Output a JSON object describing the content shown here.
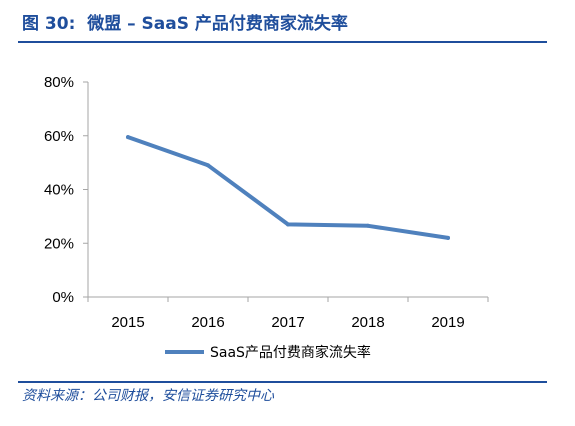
{
  "header": {
    "figure_no": "图 30:",
    "title": "微盟 – SaaS 产品付费商家流失率"
  },
  "footer": {
    "source": "资料来源：公司财报，安信证券研究中心"
  },
  "colors": {
    "accent": "#1f4e9c",
    "series": "#4f81bd",
    "axis": "#a6a6a6"
  },
  "chart_data": {
    "type": "line",
    "x": [
      "2015",
      "2016",
      "2017",
      "2018",
      "2019"
    ],
    "ylim": [
      0,
      80
    ],
    "yticks": [
      0,
      20,
      40,
      60,
      80
    ],
    "ytick_labels": [
      "0%",
      "20%",
      "40%",
      "60%",
      "80%"
    ],
    "series": [
      {
        "name": "SaaS产品付费商家流失率",
        "values": [
          59.5,
          49.0,
          27.0,
          26.5,
          22.0
        ],
        "color": "#4f81bd"
      }
    ],
    "grid": false,
    "legend": "bottom-center"
  }
}
